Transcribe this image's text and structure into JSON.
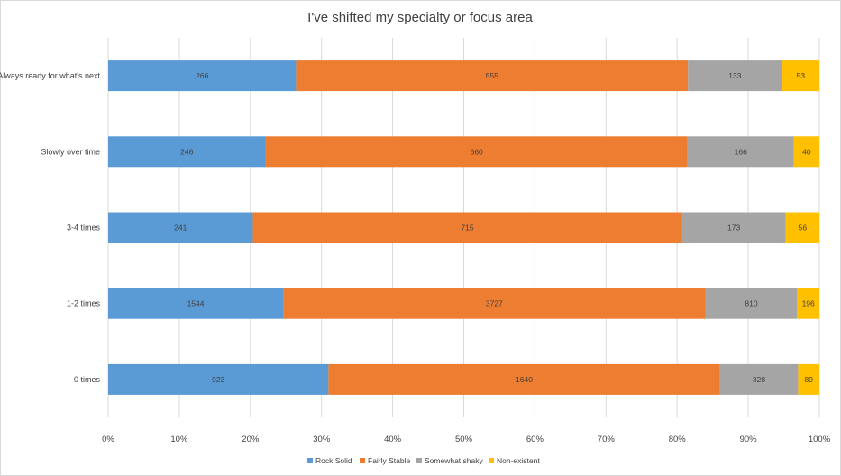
{
  "chart_data": {
    "type": "bar",
    "orientation": "horizontal",
    "stacked": "percent",
    "title": "I've shifted my specialty or focus area",
    "xlabel": "",
    "ylabel": "",
    "categories": [
      "Always ready for what's next",
      "Slowly over time",
      "3-4 times",
      "1-2 times",
      "0 times"
    ],
    "series": [
      {
        "name": "Rock Solid",
        "color": "#5b9bd5",
        "values": [
          266,
          246,
          241,
          1544,
          923
        ]
      },
      {
        "name": "Fairly Stable",
        "color": "#ed7d31",
        "values": [
          555,
          660,
          715,
          3727,
          1640
        ]
      },
      {
        "name": "Somewhat shaky",
        "color": "#a5a5a5",
        "values": [
          133,
          166,
          173,
          810,
          328
        ]
      },
      {
        "name": "Non-existent",
        "color": "#ffc000",
        "values": [
          53,
          40,
          56,
          196,
          89
        ]
      }
    ],
    "xticks": [
      "0%",
      "10%",
      "20%",
      "30%",
      "40%",
      "50%",
      "60%",
      "70%",
      "80%",
      "90%",
      "100%"
    ],
    "xlim": [
      0,
      100
    ],
    "grid": "vertical",
    "legend": "bottom"
  }
}
